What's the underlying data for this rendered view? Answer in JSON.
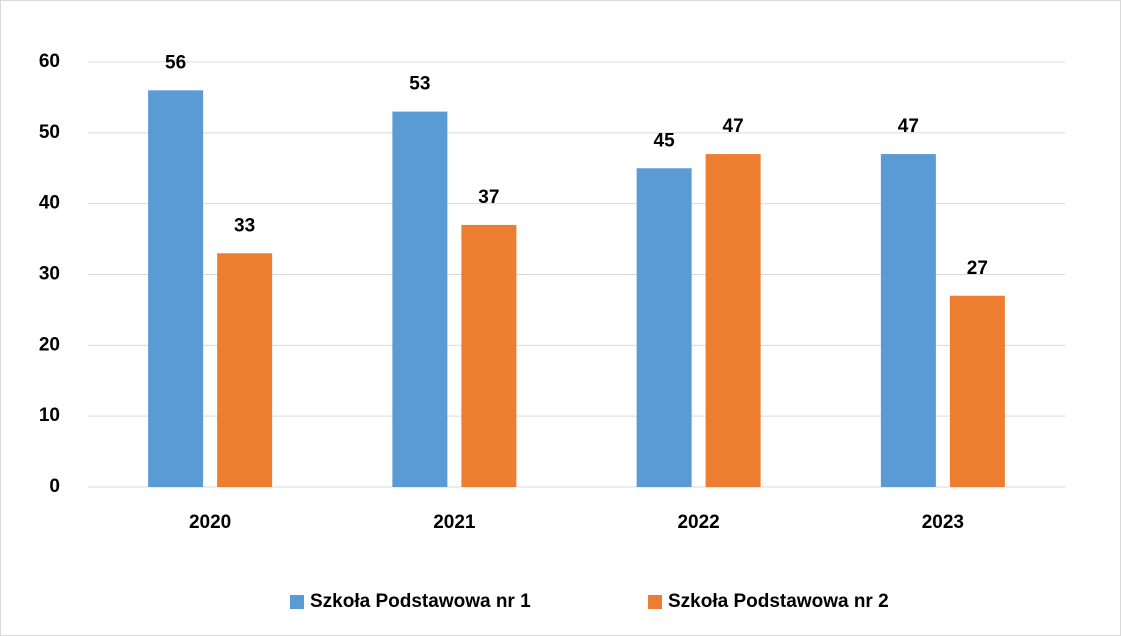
{
  "chart_data": {
    "type": "bar",
    "categories": [
      "2020",
      "2021",
      "2022",
      "2023"
    ],
    "series": [
      {
        "name": "Szkoła Podstawowa nr 1",
        "color": "#5b9bd5",
        "values": [
          56,
          53,
          45,
          47
        ]
      },
      {
        "name": "Szkoła Podstawowa nr 2",
        "color": "#ed7d31",
        "values": [
          33,
          37,
          47,
          27
        ]
      }
    ],
    "ylim": [
      0,
      60
    ],
    "yticks": [
      0,
      10,
      20,
      30,
      40,
      50,
      60
    ],
    "grid": true,
    "legend": "bottom"
  }
}
